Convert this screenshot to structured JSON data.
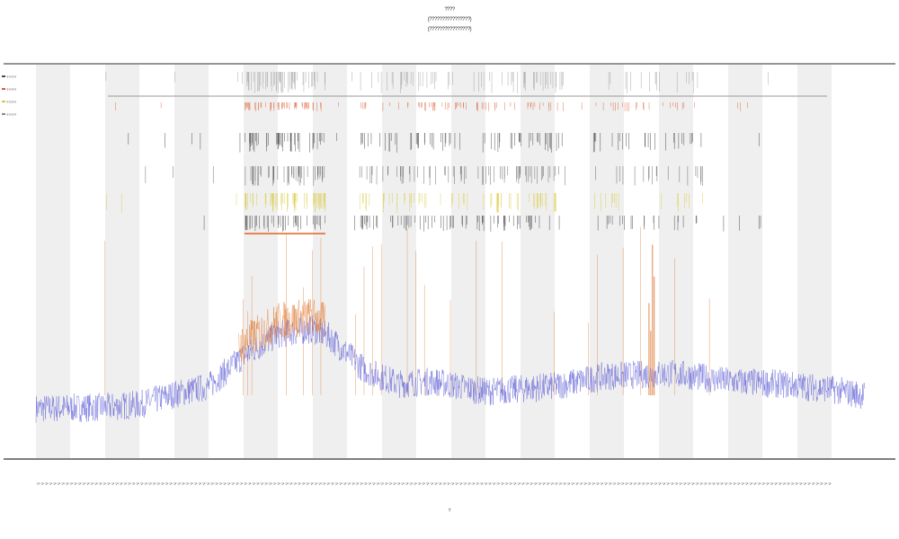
{
  "chart_data": {
    "type": "line",
    "title": "????",
    "subtitle_1": "(????????????????)",
    "subtitle_2": "(????????????????)",
    "xlabel": "?",
    "ylabel": "",
    "grid": false,
    "legend_position": "top-left",
    "legend": [
      {
        "name": "?????",
        "color": "#4a4a4a"
      },
      {
        "name": "?????",
        "color": "#e05a2b"
      },
      {
        "name": "?????",
        "color": "#d9c93a"
      },
      {
        "name": "?????",
        "color": "#8a8a8a"
      }
    ],
    "series": [
      {
        "name": "signal",
        "color": "#5b5bd6",
        "kind": "noisy-line",
        "profile": [
          [
            0,
            0.05
          ],
          [
            80,
            0.06
          ],
          [
            120,
            0.08
          ],
          [
            160,
            0.16
          ],
          [
            200,
            0.22
          ],
          [
            240,
            0.45
          ],
          [
            280,
            0.62
          ],
          [
            320,
            0.66
          ],
          [
            340,
            0.6
          ],
          [
            380,
            0.35
          ],
          [
            420,
            0.24
          ],
          [
            460,
            0.26
          ],
          [
            520,
            0.18
          ],
          [
            600,
            0.22
          ],
          [
            660,
            0.3
          ],
          [
            740,
            0.32
          ],
          [
            800,
            0.26
          ],
          [
            860,
            0.24
          ],
          [
            920,
            0.2
          ],
          [
            960,
            0.15
          ]
        ]
      },
      {
        "name": "peaks",
        "color": "#e07a35",
        "kind": "spikes",
        "x_start": 0,
        "x_end": 960
      }
    ],
    "xlim": [
      0,
      960
    ],
    "ylim": [
      0,
      1
    ],
    "x_tick_labels": "????????????????????????????????????????????????????????????????????????????????????????????????????????????????????????????????????????????????????????????????????????????????????????????????"
  }
}
